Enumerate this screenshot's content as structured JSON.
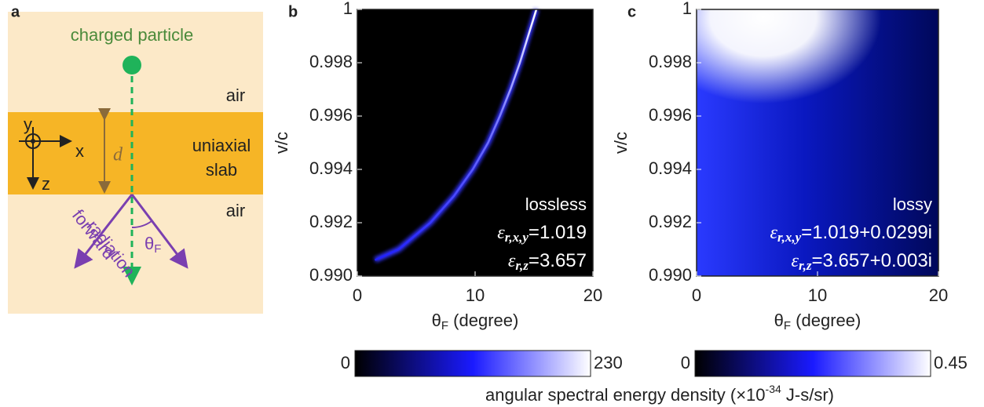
{
  "diagram": {
    "label": "a",
    "particle": "charged particle",
    "top_medium": "air",
    "slab": [
      "uniaxial",
      "slab"
    ],
    "bottom_medium": "air",
    "axes": {
      "y": "y",
      "x": "x",
      "z": "z"
    },
    "thickness": "d",
    "radiation": [
      "forward",
      "radiation"
    ],
    "angle": {
      "symbol": "θ",
      "subscript": "F"
    }
  },
  "chart_data": [
    {
      "type": "heatmap",
      "panel": "b",
      "xlabel": {
        "symbol": "θ",
        "subscript": "F",
        "text": " (degree)"
      },
      "ylabel": "v/c",
      "xlim": [
        0,
        20
      ],
      "xticks": [
        0,
        10,
        20
      ],
      "ylim": [
        0.99,
        1
      ],
      "yticks": [
        {
          "value": 0.99,
          "label": "0.990"
        },
        0.992,
        0.994,
        0.996,
        0.998,
        1
      ],
      "x": [
        1.5,
        3.5,
        6.2,
        8.2,
        9.8,
        11.1,
        12.1,
        13.0,
        13.8,
        14.5,
        15.2
      ],
      "values": [
        0.9906,
        0.991,
        0.992,
        0.993,
        0.994,
        0.995,
        0.996,
        0.997,
        0.998,
        0.999,
        1
      ],
      "colormap": [
        "#000000",
        "#1a1aff",
        "#ffffff"
      ],
      "annotation": [
        "lossless",
        {
          "symbol": "ε",
          "subscript": "r,x,y",
          "text": "=1.019"
        },
        {
          "symbol": "ε",
          "subscript": "r,z",
          "text": "=3.657"
        }
      ],
      "clim": [
        0,
        230
      ]
    },
    {
      "type": "heatmap",
      "panel": "c",
      "xlabel": {
        "symbol": "θ",
        "subscript": "F",
        "text": " (degree)"
      },
      "ylabel": "v/c",
      "xlim": [
        0,
        20
      ],
      "xticks": [
        0,
        10,
        20
      ],
      "ylim": [
        0.99,
        1
      ],
      "yticks": [
        {
          "value": 0.99,
          "label": "0.990"
        },
        0.992,
        0.994,
        0.996,
        0.998,
        1
      ],
      "colormap": [
        "#000000",
        "#1a1aff",
        "#ffffff"
      ],
      "annotation": [
        "lossy",
        {
          "symbol": "ε",
          "subscript": "r,x,y",
          "text": "=1.019+0.0299i"
        },
        {
          "symbol": "ε",
          "subscript": "r,z",
          "text": "=3.657+0.003i"
        }
      ],
      "clim": [
        0,
        0.45
      ]
    }
  ],
  "colorbar_label": {
    "text": "angular spectral energy density (×10",
    "superscript": "-34",
    "suffix": " J-s/sr)"
  }
}
